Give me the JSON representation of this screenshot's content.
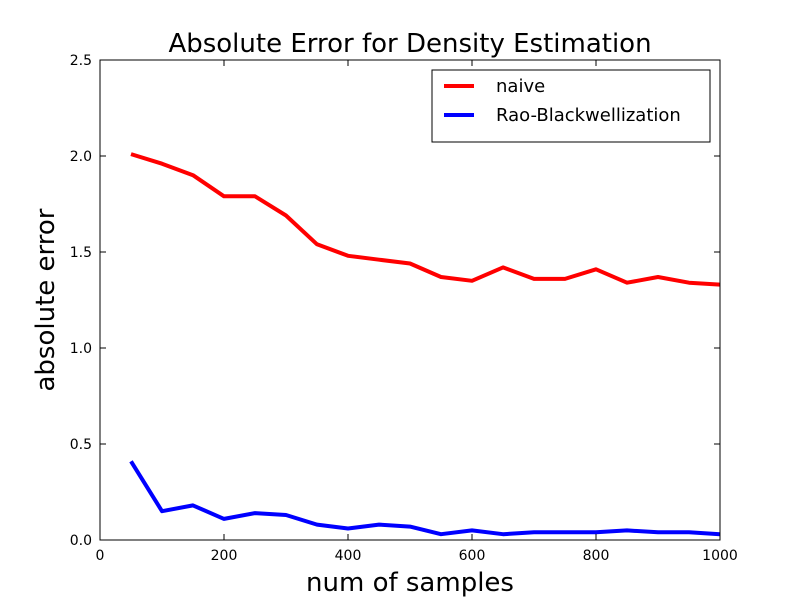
{
  "chart_data": {
    "type": "line",
    "title": "Absolute Error for Density Estimation",
    "xlabel": "num of samples",
    "ylabel": "absolute error",
    "xlim": [
      0,
      1000
    ],
    "ylim": [
      0.0,
      2.5
    ],
    "xticks": [
      "0",
      "200",
      "400",
      "600",
      "800",
      "1000"
    ],
    "yticks": [
      "0.0",
      "0.5",
      "1.0",
      "1.5",
      "2.0",
      "2.5"
    ],
    "grid": false,
    "legend": "top-right",
    "x": [
      50,
      100,
      150,
      200,
      250,
      300,
      350,
      400,
      450,
      500,
      550,
      600,
      650,
      700,
      750,
      800,
      850,
      900,
      950,
      1000
    ],
    "series": [
      {
        "name": "naive",
        "color": "#ff0000",
        "values": [
          2.01,
          1.96,
          1.9,
          1.79,
          1.79,
          1.69,
          1.54,
          1.48,
          1.46,
          1.44,
          1.37,
          1.35,
          1.42,
          1.36,
          1.36,
          1.41,
          1.34,
          1.37,
          1.34,
          1.33
        ]
      },
      {
        "name": "Rao-Blackwellization",
        "color": "#0000ff",
        "values": [
          0.41,
          0.15,
          0.18,
          0.11,
          0.14,
          0.13,
          0.08,
          0.06,
          0.08,
          0.07,
          0.03,
          0.05,
          0.03,
          0.04,
          0.04,
          0.04,
          0.05,
          0.04,
          0.04,
          0.03
        ]
      }
    ]
  }
}
